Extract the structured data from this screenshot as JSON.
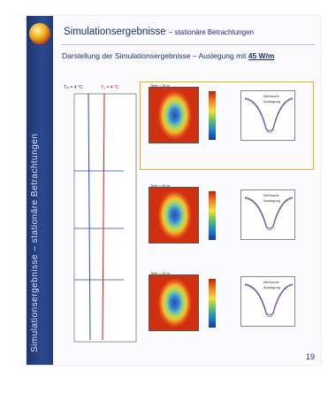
{
  "slide": {
    "sidebar_text": "Simulationsergebnisse – stationäre Betrachtungen",
    "title": "Simulationsergebnisse",
    "title_sub": "– stationäre Betrachtungen",
    "subtitle_prefix": "Darstellung der Simulationsergebnisse – Auslegung mit ",
    "subtitle_value": "45 W/m",
    "profile_label_left": "Tₘ = 4 °C",
    "profile_label_right": "Tᵤ = 4 °C",
    "page_number": "19"
  },
  "panels": [
    {
      "heat_label": "Tiefe = 30 m",
      "legend": [
        "Meßwerte",
        "Auslegung"
      ]
    },
    {
      "heat_label": "Tiefe = 60 m",
      "legend": [
        "Meßwerte",
        "Auslegung"
      ]
    },
    {
      "heat_label": "Tiefe = 90 m",
      "legend": [
        "Meßwerte",
        "Auslegung"
      ]
    }
  ],
  "colors": {
    "brand": "#1a2f78",
    "highlight": "#e8b020",
    "sidebar": "#2d4a90"
  }
}
